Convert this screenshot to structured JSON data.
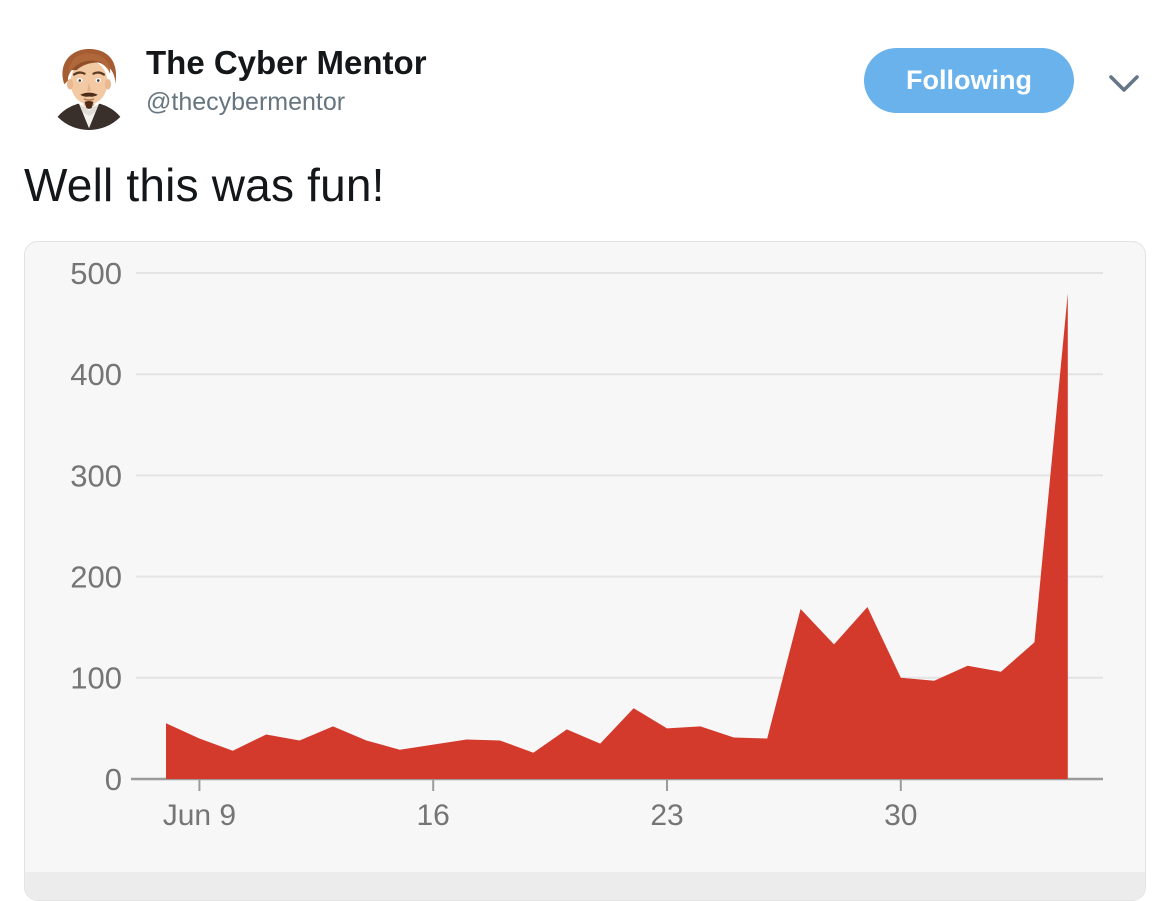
{
  "tweet": {
    "author_name": "The Cyber Mentor",
    "author_handle": "@thecybermentor",
    "follow_button_label": "Following",
    "body_text": "Well this was fun!"
  },
  "icons": {
    "caret": "chevron-down-icon",
    "avatar": "cartoon-man-portrait"
  },
  "colors": {
    "accent_blue": "#69b2eb",
    "chart_red": "#d33a2c",
    "text_black": "#14171a",
    "handle_gray": "#66757f",
    "card_background": "#f7f7f7",
    "gridline": "#e4e4e4",
    "axis_gray": "#9b9b9b",
    "label_gray": "#757575"
  },
  "chart_data": {
    "type": "area",
    "title": "",
    "xlabel": "",
    "ylabel": "",
    "x": [
      "Jun 8",
      "Jun 9",
      "Jun 10",
      "Jun 11",
      "Jun 12",
      "Jun 13",
      "Jun 14",
      "Jun 15",
      "Jun 16",
      "Jun 17",
      "Jun 18",
      "Jun 19",
      "Jun 20",
      "Jun 21",
      "Jun 22",
      "Jun 23",
      "Jun 24",
      "Jun 25",
      "Jun 26",
      "Jun 27",
      "Jun 28",
      "Jun 29",
      "Jun 30",
      "Jul 1",
      "Jul 2",
      "Jul 3",
      "Jul 4",
      "Jul 5"
    ],
    "values": [
      55,
      40,
      28,
      44,
      38,
      52,
      38,
      29,
      34,
      39,
      38,
      26,
      49,
      35,
      70,
      50,
      52,
      41,
      40,
      168,
      133,
      170,
      100,
      97,
      112,
      106,
      135,
      480
    ],
    "ylim": [
      0,
      500
    ],
    "yticks": [
      0,
      100,
      200,
      300,
      400,
      500
    ],
    "xticks": [
      {
        "label": "Jun 9",
        "day_index": 1
      },
      {
        "label": "16",
        "day_index": 8
      },
      {
        "label": "23",
        "day_index": 15
      },
      {
        "label": "30",
        "day_index": 22
      }
    ],
    "grid": true,
    "legend": "none",
    "fill_color": "#d33a2c"
  }
}
